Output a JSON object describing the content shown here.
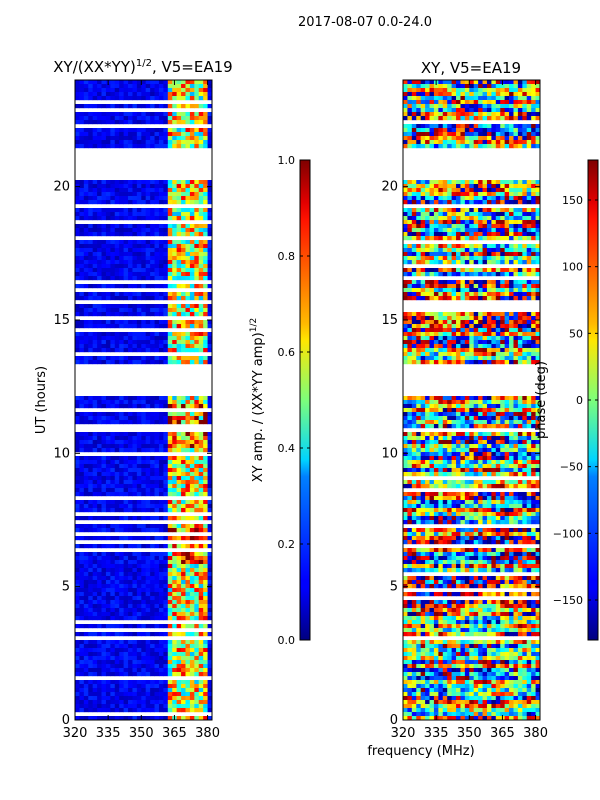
{
  "suptitle": "2017-08-07 0.0-24.0",
  "xlabel_shared": "frequency (MHz)",
  "chart_data": [
    {
      "type": "heatmap",
      "panel": "amplitude",
      "title_main": "XY/(XX*YY)",
      "title_exp": "1/2",
      "title_suffix": ", V5=EA19",
      "xlabel": "frequency (MHz)",
      "ylabel": "UT (hours)",
      "xlim": [
        320,
        382
      ],
      "ylim": [
        0,
        24
      ],
      "xticks": [
        320,
        335,
        350,
        365,
        380
      ],
      "yticks": [
        0,
        5,
        10,
        15,
        20
      ],
      "colormap": "jet",
      "colorbar": {
        "label_main": "XY amp. / (XX*YY amp)",
        "label_exp": "1/2",
        "range": [
          0.0,
          1.0
        ],
        "ticks": [
          "0.0",
          "0.2",
          "0.4",
          "0.6",
          "0.8",
          "1.0"
        ],
        "tick_values": [
          0.0,
          0.2,
          0.4,
          0.6,
          0.8,
          1.0
        ]
      },
      "gaps_hours": [
        [
          21.5,
          20.3
        ],
        [
          13.3,
          12.1
        ]
      ],
      "typical_value_low_band": 0.05,
      "typical_value_high_band": 0.6
    },
    {
      "type": "heatmap",
      "panel": "phase",
      "title_main": "XY, V5=EA19",
      "xlabel": "frequency (MHz)",
      "ylabel": "",
      "xlim": [
        320,
        382
      ],
      "ylim": [
        0,
        24
      ],
      "xticks": [
        320,
        335,
        350,
        365,
        380
      ],
      "yticks": [
        0,
        5,
        10,
        15,
        20
      ],
      "colormap": "jet",
      "colorbar": {
        "label_main": "phase (deg)",
        "range": [
          -180,
          180
        ],
        "ticks": [
          "−150",
          "−100",
          "−50",
          "0",
          "50",
          "100",
          "150"
        ],
        "tick_values": [
          -150,
          -100,
          -50,
          0,
          50,
          100,
          150
        ]
      },
      "gaps_hours": [
        [
          21.5,
          20.3
        ],
        [
          13.3,
          12.1
        ]
      ]
    }
  ],
  "colors": {
    "jet_low": "#00007f",
    "jet_high": "#7f0000",
    "gap": "#ffffff"
  }
}
